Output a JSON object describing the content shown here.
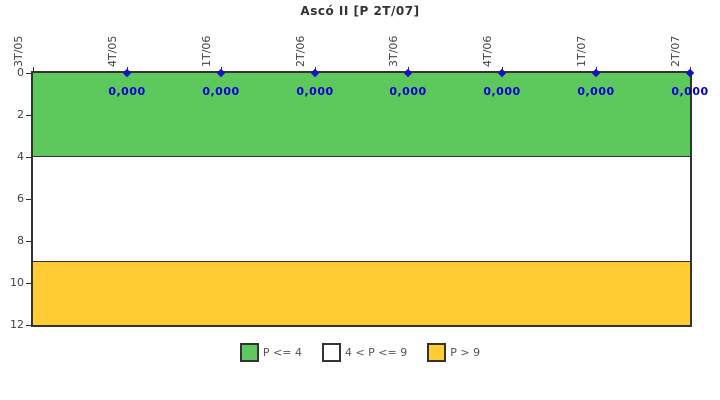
{
  "title": "Ascó II [P 2T/07]",
  "colors": {
    "band_green": "#5dc95d",
    "band_white": "#ffffff",
    "band_yellow": "#ffcc33",
    "axis": "#333333",
    "tick_label": "#444444",
    "data_label": "#0000d0",
    "marker": "#1111cc",
    "legend_text": "#555555"
  },
  "chart_data": {
    "type": "line",
    "title": "Ascó II [P 2T/07]",
    "categories": [
      "3T/05",
      "4T/05",
      "1T/06",
      "2T/06",
      "3T/06",
      "4T/06",
      "1T/07",
      "2T/07"
    ],
    "series": [
      {
        "name": "P",
        "values": [
          null,
          0,
          0,
          0,
          0,
          0,
          0,
          0
        ],
        "point_labels": [
          "",
          "0,000",
          "0,000",
          "0,000",
          "0,000",
          "0,000",
          "0,000",
          "0,000"
        ]
      }
    ],
    "ylim": [
      0,
      12
    ],
    "y_inverted": true,
    "y_ticks": [
      "0",
      "2",
      "4",
      "6",
      "8",
      "10",
      "12"
    ],
    "x_labels_rotated": true,
    "grid": false,
    "bands": [
      {
        "from": 0,
        "to": 4,
        "color": "#5dc95d",
        "label": "P <= 4"
      },
      {
        "from": 4,
        "to": 9,
        "color": "#ffffff",
        "label": "4 < P <= 9"
      },
      {
        "from": 9,
        "to": 12,
        "color": "#ffcc33",
        "label": "P > 9"
      }
    ],
    "legend": {
      "position": "bottom",
      "items": [
        {
          "label": "P <= 4",
          "color": "#5dc95d"
        },
        {
          "label": "4 < P <= 9",
          "color": "#ffffff"
        },
        {
          "label": "P > 9",
          "color": "#ffcc33"
        }
      ]
    }
  }
}
